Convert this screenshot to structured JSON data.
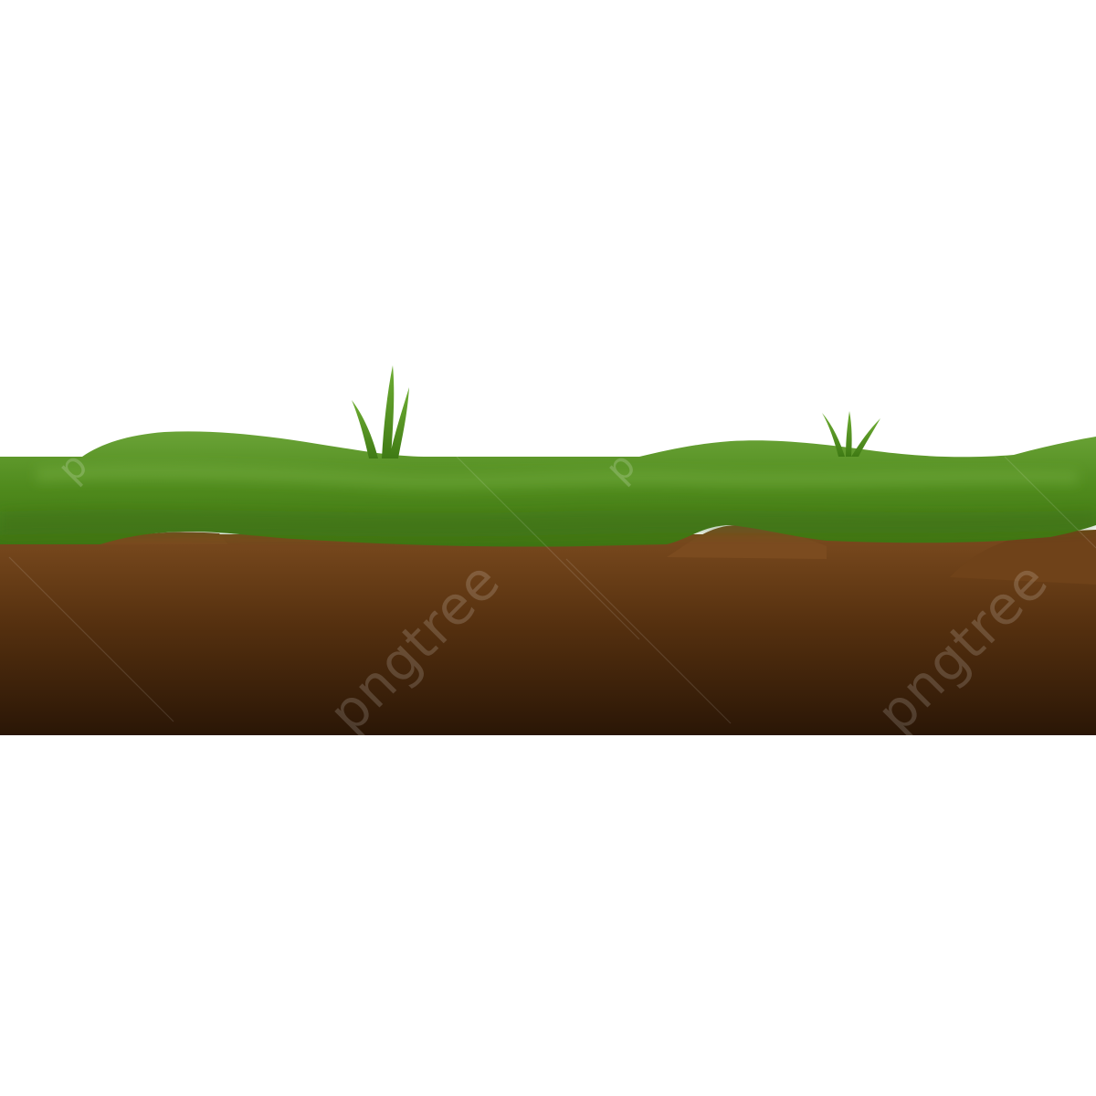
{
  "scene": {
    "background": "#ffffff",
    "grass_light": "#6aa337",
    "grass_mid": "#4f8a1c",
    "grass_dark": "#3f7412",
    "soil_top": "#7a4a1e",
    "soil_mid": "#55300f",
    "soil_bottom": "#2a1606",
    "blade_color": "#4f8f1f"
  },
  "watermark": {
    "text": "pngtree",
    "fragment": "p"
  }
}
